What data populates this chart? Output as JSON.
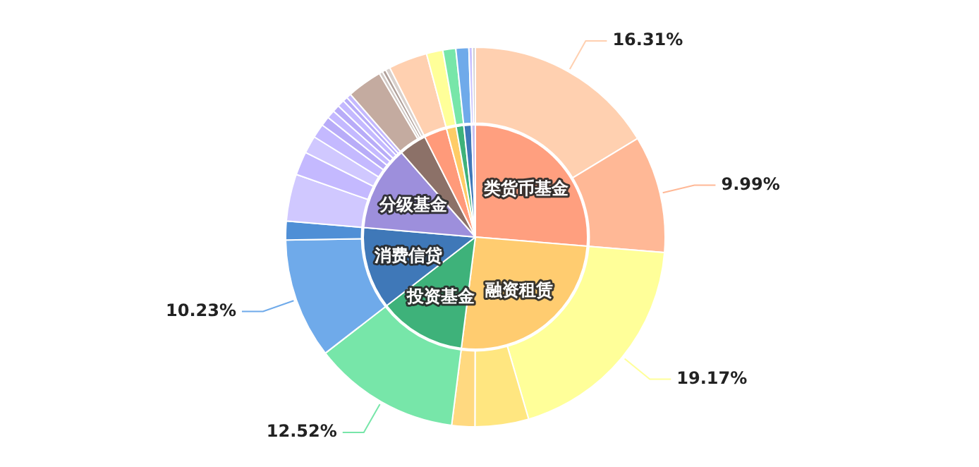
{
  "chart_data": [
    {
      "type": "pie",
      "categories": [
        "类货币基金",
        "融资租赁",
        "投资基金",
        "消费信贷",
        "分级基金",
        null,
        null,
        null,
        null,
        null,
        null
      ],
      "values": [
        26.3,
        25.7,
        12.52,
        11.83,
        12.2,
        4.0,
        3.3,
        1.4,
        1.1,
        1.1,
        0.55
      ],
      "colors": [
        "#ff9f7f",
        "#ffcc70",
        "#3eb27a",
        "#3f78b8",
        "#9d8fdc",
        "#8c7168",
        "#ff9a7a",
        "#ffcc66",
        "#3eb27a",
        "#3f78b8",
        "#c8c0f0"
      ]
    },
    {
      "type": "donut",
      "categories": [
        null,
        null,
        null,
        null,
        null,
        null,
        null,
        null,
        null,
        null,
        null,
        null,
        null,
        null,
        null,
        null,
        null,
        null,
        null,
        null,
        null,
        null,
        null,
        null,
        null,
        null,
        null,
        null
      ],
      "values": [
        16.31,
        9.99,
        19.17,
        4.57,
        1.96,
        12.52,
        10.23,
        1.6,
        4.0,
        2.0,
        1.5,
        1.2,
        0.8,
        0.7,
        0.6,
        0.6,
        0.4,
        0.4,
        3.0,
        0.3,
        0.3,
        0.4,
        3.3,
        1.4,
        1.1,
        1.1,
        0.3,
        0.25
      ],
      "colors": [
        "#ffd0b0",
        "#ffb896",
        "#ffff99",
        "#ffe680",
        "#ffd980",
        "#77e6a9",
        "#6faaea",
        "#4f8fd6",
        "#d0c8ff",
        "#c4b9ff",
        "#d0c8ff",
        "#c4b9ff",
        "#b8acf8",
        "#c4b9ff",
        "#b8acf8",
        "#c4b9ff",
        "#b8acf8",
        "#c4b9ff",
        "#c4aba0",
        "#d0c8c4",
        "#b0a09a",
        "#d8d0cc",
        "#ffd0b0",
        "#ffff99",
        "#77e6a9",
        "#6faaea",
        "#c8c0ff",
        "#d0d0d0"
      ],
      "value_labels": [
        "16.31%",
        "9.99%",
        "19.17%",
        null,
        null,
        "12.52%",
        "10.23%",
        null,
        null,
        null,
        null,
        null,
        null,
        null,
        null,
        null,
        null,
        null,
        null,
        null,
        null,
        null,
        null,
        null,
        null,
        null,
        null,
        null
      ]
    }
  ]
}
